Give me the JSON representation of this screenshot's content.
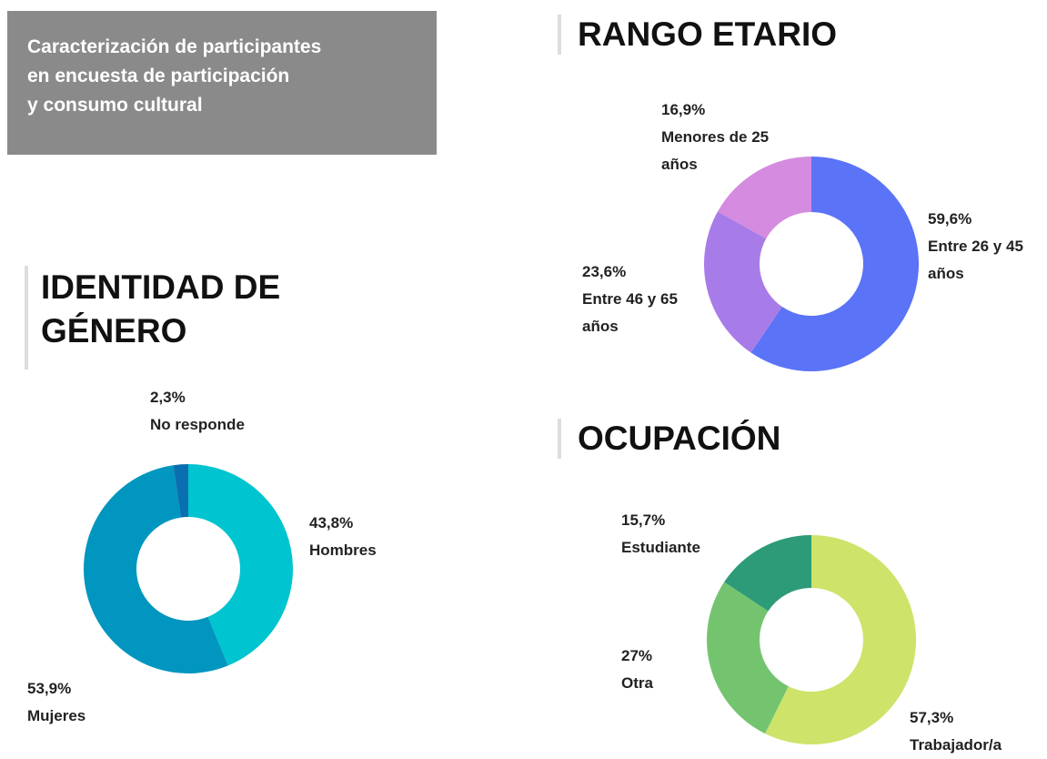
{
  "header": {
    "title": [
      "Caracterización de participantes",
      "en encuesta de participación",
      "y consumo cultural"
    ]
  },
  "chart_data": [
    {
      "type": "pie",
      "title": "RANGO ETARIO",
      "categories": [
        "Entre 26 y 45 años",
        "Entre 46 y 65 años",
        "Menores de 25 años"
      ],
      "values": [
        59.6,
        23.6,
        16.9
      ],
      "value_labels": [
        "59,6%",
        "23,6%",
        "16,9%"
      ],
      "colors": [
        "#5b73f7",
        "#a87ce8",
        "#d58be0"
      ]
    },
    {
      "type": "pie",
      "title": "IDENTIDAD DE GÉNERO",
      "categories": [
        "Hombres",
        "Mujeres",
        "No responde"
      ],
      "values": [
        43.8,
        53.9,
        2.3
      ],
      "value_labels": [
        "43,8%",
        "53,9%",
        "2,3%"
      ],
      "colors": [
        "#00c4cf",
        "#0096bf",
        "#0a6fb0"
      ]
    },
    {
      "type": "pie",
      "title": "OCUPACIÓN",
      "categories": [
        "Trabajador/a",
        "Otra",
        "Estudiante"
      ],
      "values": [
        57.3,
        27,
        15.7
      ],
      "value_labels": [
        "57,3%",
        "27%",
        "15,7%"
      ],
      "colors": [
        "#cde36a",
        "#74c46f",
        "#2e9b78"
      ]
    }
  ]
}
